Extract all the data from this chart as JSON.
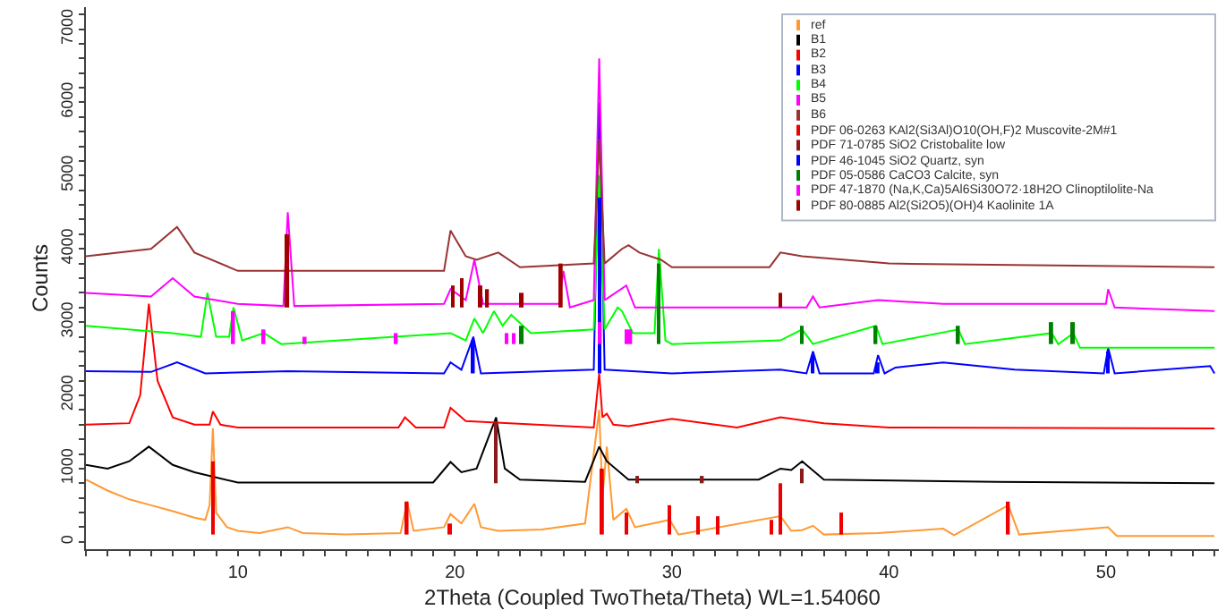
{
  "chart_data": {
    "type": "line",
    "xlabel": "2Theta (Coupled TwoTheta/Theta) WL=1.54060",
    "ylabel": "Counts",
    "xlim": [
      3,
      55.2
    ],
    "ylim": [
      -100,
      7300
    ],
    "xticks": [
      {
        "value": 3,
        "label": null
      },
      {
        "value": 4,
        "label": null
      },
      {
        "value": 5,
        "label": null
      },
      {
        "value": 6,
        "label": null
      },
      {
        "value": 7,
        "label": null
      },
      {
        "value": 8,
        "label": null
      },
      {
        "value": 9,
        "label": null
      },
      10,
      {
        "value": 11,
        "label": null
      },
      {
        "value": 12,
        "label": null
      },
      {
        "value": 13,
        "label": null
      },
      {
        "value": 14,
        "label": null
      },
      {
        "value": 15,
        "label": null
      },
      {
        "value": 16,
        "label": null
      },
      {
        "value": 17,
        "label": null
      },
      {
        "value": 18,
        "label": null
      },
      {
        "value": 19,
        "label": null
      },
      20,
      {
        "value": 21,
        "label": null
      },
      {
        "value": 22,
        "label": null
      },
      {
        "value": 23,
        "label": null
      },
      {
        "value": 24,
        "label": null
      },
      {
        "value": 25,
        "label": null
      },
      {
        "value": 26,
        "label": null
      },
      {
        "value": 27,
        "label": null
      },
      {
        "value": 28,
        "label": null
      },
      {
        "value": 29,
        "label": null
      },
      30,
      {
        "value": 31,
        "label": null
      },
      {
        "value": 32,
        "label": null
      },
      {
        "value": 33,
        "label": null
      },
      {
        "value": 34,
        "label": null
      },
      {
        "value": 35,
        "label": null
      },
      {
        "value": 36,
        "label": null
      },
      {
        "value": 37,
        "label": null
      },
      {
        "value": 38,
        "label": null
      },
      {
        "value": 39,
        "label": null
      },
      40,
      {
        "value": 41,
        "label": null
      },
      {
        "value": 42,
        "label": null
      },
      {
        "value": 43,
        "label": null
      },
      {
        "value": 44,
        "label": null
      },
      {
        "value": 45,
        "label": null
      },
      {
        "value": 46,
        "label": null
      },
      {
        "value": 47,
        "label": null
      },
      {
        "value": 48,
        "label": null
      },
      {
        "value": 49,
        "label": null
      },
      50,
      {
        "value": 51,
        "label": null
      },
      {
        "value": 52,
        "label": null
      },
      {
        "value": 53,
        "label": null
      },
      {
        "value": 54,
        "label": null
      },
      {
        "value": 55,
        "label": null
      }
    ],
    "yticks": [
      0,
      {
        "value": 200,
        "label": null
      },
      {
        "value": 400,
        "label": null
      },
      {
        "value": 600,
        "label": null
      },
      {
        "value": 800,
        "label": null
      },
      1000,
      {
        "value": 1200,
        "label": null
      },
      {
        "value": 1400,
        "label": null
      },
      {
        "value": 1600,
        "label": null
      },
      {
        "value": 1800,
        "label": null
      },
      2000,
      {
        "value": 2200,
        "label": null
      },
      {
        "value": 2400,
        "label": null
      },
      {
        "value": 2600,
        "label": null
      },
      {
        "value": 2800,
        "label": null
      },
      3000,
      {
        "value": 3200,
        "label": null
      },
      {
        "value": 3400,
        "label": null
      },
      {
        "value": 3600,
        "label": null
      },
      {
        "value": 3800,
        "label": null
      },
      4000,
      {
        "value": 4200,
        "label": null
      },
      {
        "value": 4400,
        "label": null
      },
      {
        "value": 4600,
        "label": null
      },
      {
        "value": 4800,
        "label": null
      },
      5000,
      {
        "value": 5200,
        "label": null
      },
      {
        "value": 5400,
        "label": null
      },
      {
        "value": 5600,
        "label": null
      },
      {
        "value": 5800,
        "label": null
      },
      6000,
      {
        "value": 6200,
        "label": null
      },
      {
        "value": 6400,
        "label": null
      },
      {
        "value": 6600,
        "label": null
      },
      {
        "value": 6800,
        "label": null
      },
      7000,
      {
        "value": 7200,
        "label": null
      }
    ],
    "legend": "top right",
    "marker": "none",
    "line_style": "solid",
    "series": [
      {
        "name": "ref",
        "color": "#ff9933",
        "x": [
          3,
          4,
          5,
          6,
          7,
          8,
          8.5,
          8.7,
          8.85,
          9,
          9.5,
          10,
          11,
          12.3,
          13,
          15,
          17.5,
          17.8,
          18.1,
          19.5,
          19.8,
          20.3,
          20.9,
          21.2,
          22,
          24,
          25.5,
          26,
          26.65,
          26.8,
          27,
          27.3,
          27.9,
          28.3,
          29.9,
          30.3,
          35,
          35.5,
          36,
          36.5,
          37,
          39.5,
          42.5,
          43,
          45.5,
          46,
          50.1,
          50.5,
          55
        ],
        "values": [
          850,
          700,
          580,
          500,
          420,
          330,
          300,
          500,
          1550,
          400,
          200,
          150,
          120,
          200,
          120,
          100,
          120,
          550,
          150,
          200,
          380,
          250,
          520,
          200,
          150,
          170,
          230,
          250,
          1800,
          600,
          1300,
          300,
          450,
          200,
          300,
          100,
          350,
          150,
          160,
          220,
          100,
          120,
          180,
          90,
          500,
          100,
          200,
          80,
          80
        ]
      },
      {
        "name": "B1",
        "color": "#000000",
        "x": [
          3,
          4,
          5,
          5.9,
          7,
          8,
          10,
          19,
          19.8,
          20.3,
          21,
          21.9,
          22.3,
          23,
          26,
          26.65,
          27,
          28,
          34,
          35,
          35.5,
          36,
          37,
          45,
          55
        ],
        "values": [
          1050,
          1000,
          1100,
          1300,
          1050,
          950,
          810,
          810,
          1090,
          950,
          1000,
          1700,
          1000,
          850,
          820,
          1300,
          1100,
          850,
          850,
          1000,
          980,
          1100,
          850,
          820,
          800
        ]
      },
      {
        "name": "B2",
        "color": "#ff0000",
        "x": [
          3,
          5,
          5.5,
          5.9,
          6.3,
          7,
          8,
          8.7,
          8.85,
          9.2,
          10,
          17.4,
          17.7,
          18.2,
          19.5,
          19.8,
          20.5,
          26.4,
          26.65,
          26.8,
          27,
          27.3,
          28,
          30,
          33,
          35,
          37,
          40,
          55
        ],
        "values": [
          1600,
          1620,
          2000,
          3250,
          2200,
          1700,
          1600,
          1600,
          1780,
          1600,
          1560,
          1560,
          1700,
          1560,
          1560,
          1830,
          1650,
          1560,
          2300,
          1700,
          1750,
          1600,
          1580,
          1680,
          1560,
          1700,
          1620,
          1560,
          1550
        ]
      },
      {
        "name": "B3",
        "color": "#0000ff",
        "x": [
          3,
          6,
          7.2,
          8.5,
          12.3,
          19.5,
          19.8,
          20.3,
          20.85,
          21.2,
          26.4,
          26.65,
          26.9,
          30,
          35,
          36.2,
          36.5,
          36.8,
          39.3,
          39.5,
          39.8,
          40.3,
          42.5,
          45.8,
          49.9,
          50.1,
          50.4,
          54.8,
          55
        ],
        "values": [
          2330,
          2320,
          2450,
          2300,
          2330,
          2300,
          2450,
          2350,
          2800,
          2300,
          2350,
          6000,
          2350,
          2300,
          2350,
          2300,
          2600,
          2300,
          2300,
          2550,
          2300,
          2380,
          2450,
          2350,
          2300,
          2650,
          2300,
          2400,
          2300
        ]
      },
      {
        "name": "B4",
        "color": "#00ff00",
        "x": [
          3,
          7,
          8.3,
          8.6,
          9,
          9.6,
          9.8,
          10.2,
          11.2,
          12,
          19.8,
          20.5,
          20.9,
          21.3,
          21.8,
          22.2,
          22.6,
          23.5,
          26.4,
          26.65,
          26.9,
          27.5,
          27.7,
          28.2,
          29.2,
          29.4,
          29.7,
          30,
          35,
          36,
          36.5,
          39.4,
          39.7,
          43.2,
          43.5,
          47.5,
          47.8,
          48.5,
          48.8,
          55
        ],
        "values": [
          2950,
          2850,
          2800,
          3400,
          2800,
          2800,
          3200,
          2750,
          2850,
          2700,
          2850,
          2750,
          3050,
          2850,
          3150,
          2950,
          3100,
          2850,
          2900,
          5000,
          2900,
          3200,
          3150,
          2850,
          2850,
          4000,
          2750,
          2700,
          2750,
          2900,
          2700,
          2950,
          2700,
          2900,
          2700,
          2850,
          2700,
          2850,
          2650,
          2650
        ]
      },
      {
        "name": "B5",
        "color": "#ff00ff",
        "x": [
          3,
          6,
          7,
          8,
          10,
          12.1,
          12.3,
          12.6,
          19.5,
          19.8,
          20.5,
          20.9,
          21.3,
          24.8,
          25,
          25.3,
          26.4,
          26.65,
          26.9,
          27.9,
          28.3,
          30,
          36.2,
          36.5,
          36.8,
          39.5,
          42.5,
          50,
          50.1,
          50.4,
          55
        ],
        "values": [
          3400,
          3350,
          3600,
          3350,
          3250,
          3220,
          4500,
          3220,
          3250,
          3450,
          3300,
          3850,
          3250,
          3250,
          3700,
          3200,
          3300,
          6600,
          3300,
          3500,
          3200,
          3200,
          3200,
          3350,
          3200,
          3300,
          3250,
          3250,
          3450,
          3200,
          3150
        ]
      },
      {
        "name": "B6",
        "color": "#993333",
        "x": [
          3,
          6,
          7.2,
          8,
          10,
          12,
          19.5,
          19.8,
          20.5,
          21,
          22,
          23,
          26.4,
          26.65,
          26.9,
          27.7,
          28,
          28.5,
          29.5,
          30,
          34.5,
          35,
          36,
          40,
          55
        ],
        "values": [
          3900,
          4000,
          4300,
          3950,
          3700,
          3700,
          3700,
          4250,
          3900,
          3850,
          3950,
          3750,
          3800,
          5500,
          3800,
          4000,
          4050,
          3950,
          3850,
          3750,
          3750,
          3950,
          3900,
          3800,
          3750
        ]
      },
      {
        "name": "PDF 06-0263 KAl2(Si3Al)O10(OH,F)2 Muscovite-2M#1",
        "type": "bar",
        "color": "#ee0000",
        "x": [
          8.85,
          17.8,
          19.8,
          26.8,
          27.9,
          29.9,
          31.2,
          32.1,
          34.6,
          35,
          37.8,
          45.5
        ],
        "values": [
          1000,
          450,
          150,
          900,
          300,
          400,
          250,
          250,
          200,
          700,
          300,
          450
        ],
        "base": [
          100,
          100,
          100,
          100,
          100,
          100,
          100,
          100,
          100,
          100,
          100,
          100
        ]
      },
      {
        "name": "PDF 71-0785 SiO2 Cristobalite low",
        "type": "bar",
        "color": "#8b1a1a",
        "x": [
          21.9,
          28.4,
          31.4,
          36
        ],
        "values": [
          850,
          100,
          100,
          200
        ],
        "base": [
          800,
          800,
          800,
          800
        ]
      },
      {
        "name": "PDF 46-1045 SiO2 Quartz, syn",
        "type": "bar",
        "color": "#0000ff",
        "x": [
          20.85,
          26.65,
          36.5,
          39.5,
          50.1
        ],
        "values": [
          450,
          2400,
          250,
          150,
          300
        ],
        "base": [
          2300,
          2300,
          2300,
          2300,
          2300
        ]
      },
      {
        "name": "PDF 05-0586 CaCO3 Calcite, syn",
        "type": "bar",
        "color": "#008000",
        "x": [
          23.1,
          29.4,
          36,
          39.4,
          43.2,
          47.5,
          48.5
        ],
        "values": [
          250,
          1100,
          250,
          250,
          250,
          300,
          300
        ],
        "base": [
          2700,
          2700,
          2700,
          2700,
          2700,
          2700,
          2700
        ]
      },
      {
        "name": "PDF 47-1870 (Na,K,Ca)5Al6Si30O72·18H2O Clinoptilolite-Na",
        "type": "bar",
        "color": "#ff00ff",
        "x": [
          9.8,
          11.2,
          13.1,
          17.3,
          22.4,
          22.7,
          26.7,
          27.9,
          28.1
        ],
        "values": [
          450,
          200,
          100,
          150,
          150,
          150,
          300,
          200,
          200
        ],
        "base": [
          2700,
          2700,
          2700,
          2700,
          2700,
          2700,
          2700,
          2700,
          2700
        ]
      },
      {
        "name": "PDF 80-0885 Al2(Si2O5)(OH)4 Kaolinite 1A",
        "type": "bar",
        "color": "#a00000",
        "x": [
          12.3,
          19.9,
          20.3,
          21.2,
          21.5,
          23.1,
          24.9,
          35
        ],
        "values": [
          1000,
          300,
          400,
          300,
          250,
          200,
          600,
          200
        ],
        "base": [
          3200,
          3200,
          3200,
          3200,
          3200,
          3200,
          3200,
          3200
        ]
      }
    ]
  }
}
